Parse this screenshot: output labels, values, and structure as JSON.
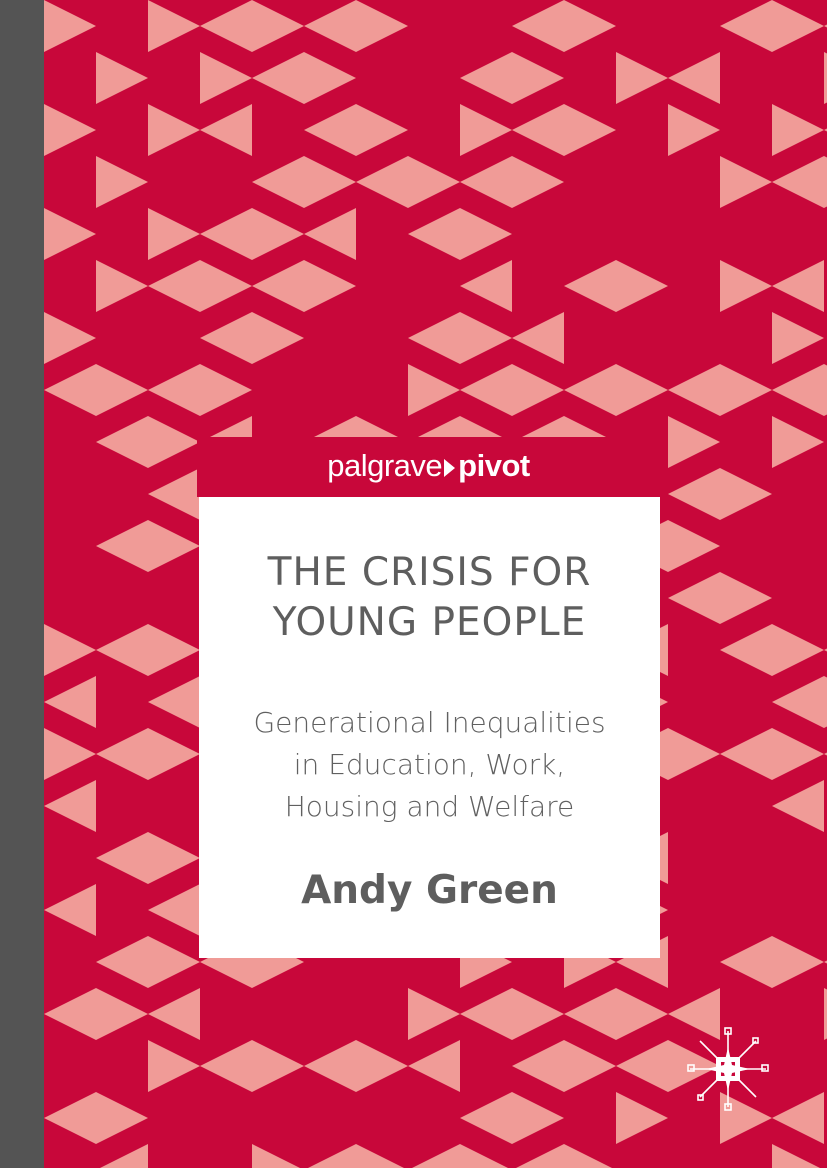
{
  "cover": {
    "imprint": {
      "prefix": "palgrave",
      "suffix": "pivot"
    },
    "title_lines": [
      "THE CRISIS FOR",
      "YOUNG PEOPLE"
    ],
    "subtitle_lines": [
      "Generational Inequalities",
      "in Education, Work,",
      "Housing and Welfare"
    ],
    "author": "Andy Green",
    "logo_icon": "palgrave-star-logo-icon"
  },
  "colors": {
    "background_red": "#c8073a",
    "triangle_pink": "#f09b97",
    "spine": "#545454",
    "text_gray": "#5e5e5e"
  }
}
